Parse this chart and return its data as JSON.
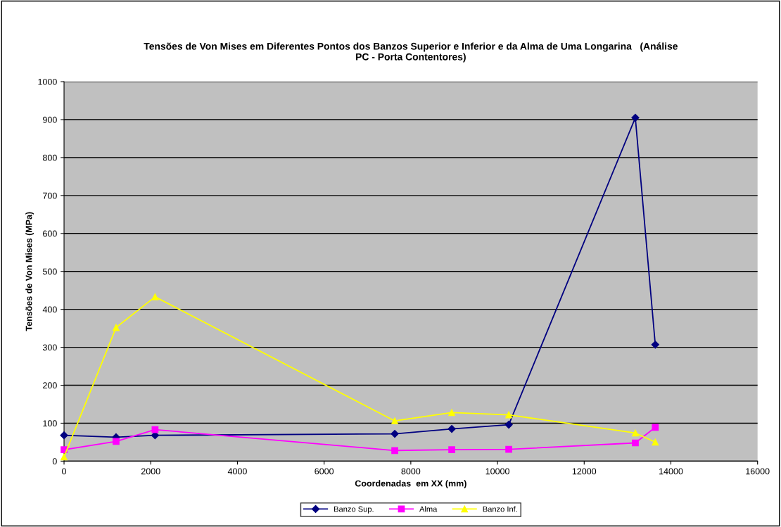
{
  "chart_data": {
    "type": "line",
    "title": "Tensões de Von Mises em Diferentes Pontos dos Banzos Superior e Inferior e da Alma de Uma Longarina   (Análise\nPC - Porta Contentores)",
    "xlabel": "Coordenadas  em XX (mm)",
    "ylabel": "Tensões de Von Mises (MPa)",
    "x": [
      0,
      1200,
      2100,
      7630,
      8945,
      10260,
      13180,
      13640
    ],
    "series": [
      {
        "name": "Banzo Sup.",
        "color": "#000080",
        "marker": "diamond",
        "values": [
          68,
          63,
          68,
          72,
          85,
          96,
          905,
          307
        ]
      },
      {
        "name": "Alma",
        "color": "#ff00ff",
        "marker": "square",
        "values": [
          30,
          52,
          83,
          28,
          30,
          31,
          48,
          89
        ]
      },
      {
        "name": "Banzo Inf.",
        "color": "#ffff00",
        "marker": "triangle",
        "values": [
          11,
          352,
          433,
          106,
          128,
          122,
          74,
          50
        ]
      }
    ],
    "xlim": [
      0,
      16000
    ],
    "xticks": [
      0,
      2000,
      4000,
      6000,
      8000,
      10000,
      12000,
      14000,
      16000
    ],
    "ylim": [
      0,
      1000
    ],
    "yticks": [
      0,
      100,
      200,
      300,
      400,
      500,
      600,
      700,
      800,
      900,
      1000
    ],
    "grid": "y",
    "legend": "bottom"
  }
}
